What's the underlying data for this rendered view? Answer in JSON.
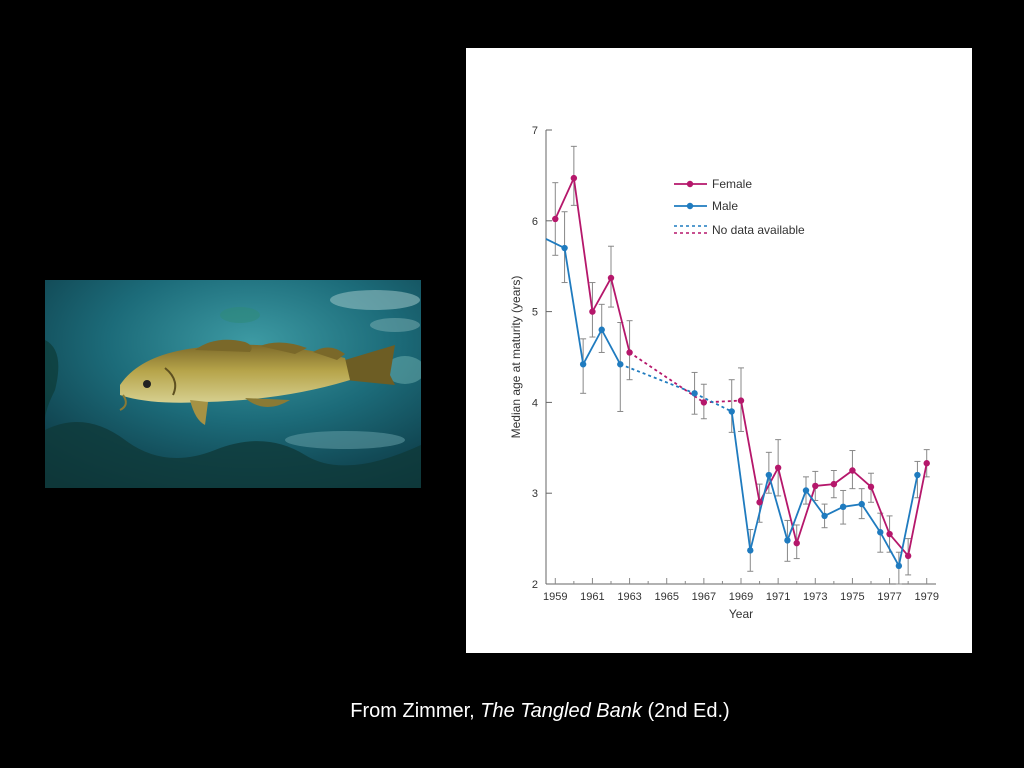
{
  "caption": {
    "prefix": "From Zimmer, ",
    "book_title": "The Tangled Bank",
    "suffix": " (2nd Ed.)"
  },
  "photo": {
    "subject": "cod fish underwater"
  },
  "chart_data": {
    "type": "line",
    "xlabel": "Year",
    "ylabel": "Median age at maturity (years)",
    "xlim": [
      1958.5,
      1979.5
    ],
    "ylim": [
      2,
      7
    ],
    "x_ticks": [
      1959,
      1961,
      1963,
      1965,
      1967,
      1969,
      1971,
      1973,
      1975,
      1977,
      1979
    ],
    "y_ticks": [
      2,
      3,
      4,
      5,
      6,
      7
    ],
    "grid": false,
    "legend_position": "top-right",
    "legend": [
      {
        "label": "Female",
        "color": "#b5176b",
        "style": "line-marker"
      },
      {
        "label": "Male",
        "color": "#1f7bbf",
        "style": "line-marker"
      },
      {
        "label": "No data available",
        "style": "dashed"
      }
    ],
    "series": [
      {
        "name": "Female",
        "color": "#b5176b",
        "points": [
          {
            "x": 1959,
            "y": 6.02,
            "lo": 5.62,
            "hi": 6.42
          },
          {
            "x": 1960,
            "y": 6.47,
            "lo": 6.17,
            "hi": 6.82
          },
          {
            "x": 1961,
            "y": 5.0,
            "lo": 4.72,
            "hi": 5.32
          },
          {
            "x": 1962,
            "y": 5.37,
            "lo": 5.05,
            "hi": 5.72
          },
          {
            "x": 1963,
            "y": 4.55,
            "lo": 4.25,
            "hi": 4.9
          },
          {
            "x": 1967,
            "y": 4.0,
            "lo": 3.82,
            "hi": 4.2
          },
          {
            "x": 1969,
            "y": 4.02,
            "lo": 3.68,
            "hi": 4.38
          },
          {
            "x": 1970,
            "y": 2.9,
            "lo": 2.68,
            "hi": 3.1
          },
          {
            "x": 1971,
            "y": 3.28,
            "lo": 2.97,
            "hi": 3.59
          },
          {
            "x": 1972,
            "y": 2.45,
            "lo": 2.28,
            "hi": 2.65
          },
          {
            "x": 1973,
            "y": 3.08,
            "lo": 2.92,
            "hi": 3.24
          },
          {
            "x": 1974,
            "y": 3.1,
            "lo": 2.95,
            "hi": 3.25
          },
          {
            "x": 1975,
            "y": 3.25,
            "lo": 3.05,
            "hi": 3.47
          },
          {
            "x": 1976,
            "y": 3.07,
            "lo": 2.9,
            "hi": 3.22
          },
          {
            "x": 1977,
            "y": 2.55,
            "lo": 2.35,
            "hi": 2.75
          },
          {
            "x": 1978,
            "y": 2.31,
            "lo": 2.1,
            "hi": 2.5
          },
          {
            "x": 1979,
            "y": 3.33,
            "lo": 3.18,
            "hi": 3.48
          }
        ]
      },
      {
        "name": "Male",
        "color": "#1f7bbf",
        "points": [
          {
            "x": 1958.5,
            "y": 5.8
          },
          {
            "x": 1959.5,
            "y": 5.7,
            "lo": 5.32,
            "hi": 6.1
          },
          {
            "x": 1960.5,
            "y": 4.42,
            "lo": 4.1,
            "hi": 4.7
          },
          {
            "x": 1961.5,
            "y": 4.8,
            "lo": 4.55,
            "hi": 5.08
          },
          {
            "x": 1962.5,
            "y": 4.42,
            "lo": 3.9,
            "hi": 4.88
          },
          {
            "x": 1966.5,
            "y": 4.1,
            "lo": 3.87,
            "hi": 4.33
          },
          {
            "x": 1968.5,
            "y": 3.9,
            "lo": 3.67,
            "hi": 4.25
          },
          {
            "x": 1969.5,
            "y": 2.37,
            "lo": 2.14,
            "hi": 2.6
          },
          {
            "x": 1970.5,
            "y": 3.2,
            "lo": 3.0,
            "hi": 3.45
          },
          {
            "x": 1971.5,
            "y": 2.48,
            "lo": 2.25,
            "hi": 2.7
          },
          {
            "x": 1972.5,
            "y": 3.03,
            "lo": 2.88,
            "hi": 3.18
          },
          {
            "x": 1973.5,
            "y": 2.75,
            "lo": 2.62,
            "hi": 2.88
          },
          {
            "x": 1974.5,
            "y": 2.85,
            "lo": 2.66,
            "hi": 3.03
          },
          {
            "x": 1975.5,
            "y": 2.88,
            "lo": 2.72,
            "hi": 3.05
          },
          {
            "x": 1976.5,
            "y": 2.57,
            "lo": 2.35,
            "hi": 2.78
          },
          {
            "x": 1977.5,
            "y": 2.2,
            "lo": 2.0,
            "hi": 2.35
          },
          {
            "x": 1978.5,
            "y": 3.2,
            "lo": 2.95,
            "hi": 3.35
          }
        ]
      }
    ],
    "no_data_gaps": [
      {
        "series": "Female",
        "from": 1963,
        "to": 1967
      },
      {
        "series": "Female",
        "from": 1967,
        "to": 1969
      },
      {
        "series": "Male",
        "from": 1962.5,
        "to": 1966.5
      },
      {
        "series": "Male",
        "from": 1966.5,
        "to": 1968.5
      }
    ]
  }
}
